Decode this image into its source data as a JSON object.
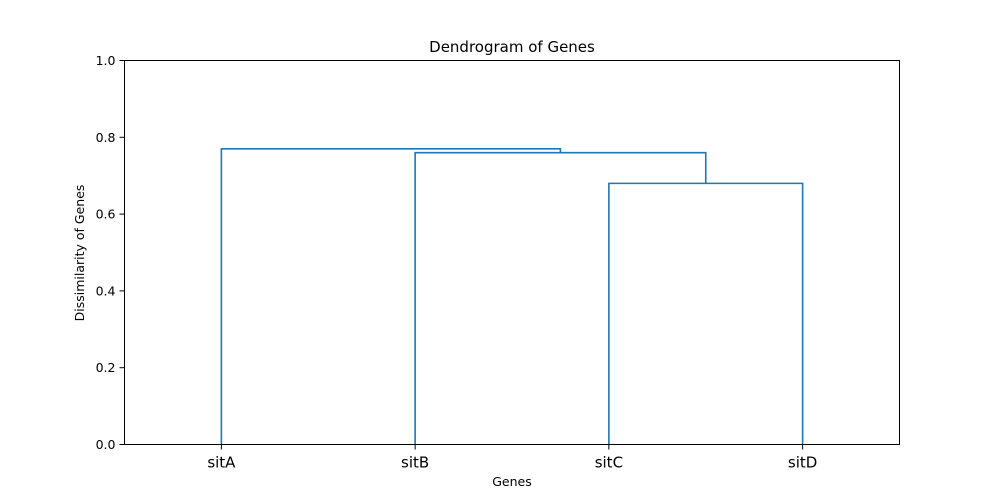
{
  "chart_data": {
    "type": "dendrogram",
    "title": "Dendrogram of Genes",
    "xlabel": "Genes",
    "ylabel": "Dissimilarity of Genes",
    "ylim": [
      0,
      1.0
    ],
    "yticks": [
      "0.0",
      "0.2",
      "0.4",
      "0.6",
      "0.8",
      "1.0"
    ],
    "leaves": [
      "sitA",
      "sitB",
      "sitC",
      "sitD"
    ],
    "merges": [
      {
        "children": [
          "sitC",
          "sitD"
        ],
        "height": 0.68
      },
      {
        "children": [
          "sitB",
          "(sitC,sitD)"
        ],
        "height": 0.76
      },
      {
        "children": [
          "sitA",
          "(sitB,sitC,sitD)"
        ],
        "height": 0.77
      }
    ],
    "color": "#1f77b4",
    "grid": false
  }
}
